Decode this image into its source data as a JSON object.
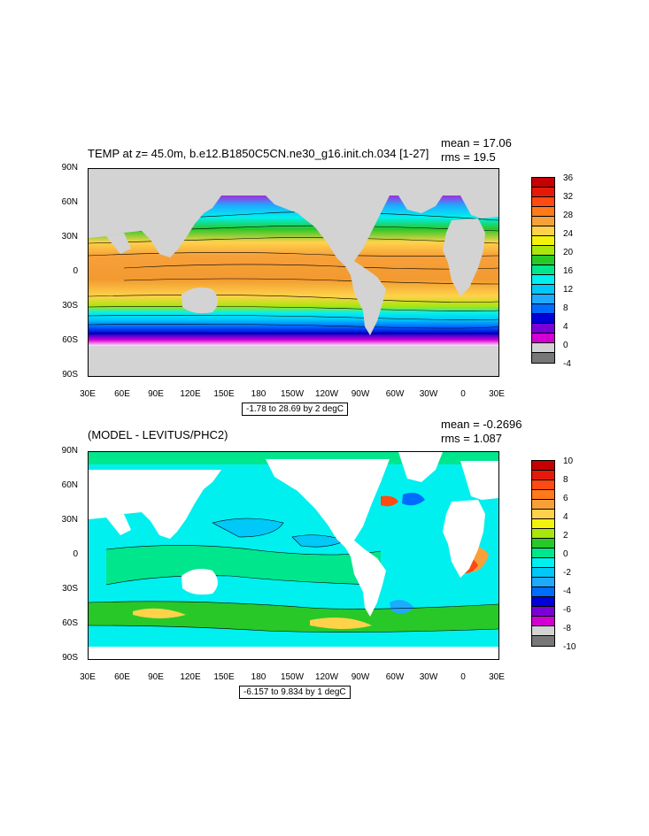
{
  "panels": [
    {
      "title": "TEMP at z=  45.0m, b.e12.B1850C5CN.ne30_g16.init.ch.034 [1-27]",
      "mean": "mean = 17.06",
      "rms": "rms = 19.5",
      "range_text": "-1.78 to 28.69 by 2 degC",
      "lat_labels": [
        "90N",
        "60N",
        "30N",
        "0",
        "30S",
        "60S",
        "90S"
      ],
      "lon_labels": [
        "30E",
        "60E",
        "90E",
        "120E",
        "150E",
        "180",
        "150W",
        "120W",
        "90W",
        "60W",
        "30W",
        "0",
        "30E"
      ],
      "colorbar_labels": [
        "36",
        "32",
        "28",
        "24",
        "20",
        "16",
        "12",
        "8",
        "4",
        "0",
        "-4"
      ],
      "colorbar_colors": [
        "#c40000",
        "#e31a0a",
        "#ff4a12",
        "#ff7a1a",
        "#f7a03a",
        "#ffd24a",
        "#f2f20c",
        "#a8e60c",
        "#28c828",
        "#00e68c",
        "#00f0f0",
        "#00c8f8",
        "#1eaaff",
        "#006cff",
        "#0000d8",
        "#7a00d8",
        "#d200d2",
        "#d3d3d3",
        "#777777"
      ],
      "land_color": "#d3d3d3"
    },
    {
      "title": "(MODEL - LEVITUS/PHC2)",
      "mean": "mean = -0.2696",
      "rms": "rms = 1.087",
      "range_text": "-6.157 to 9.834 by 1 degC",
      "lat_labels": [
        "90N",
        "60N",
        "30N",
        "0",
        "30S",
        "60S",
        "90S"
      ],
      "lon_labels": [
        "30E",
        "60E",
        "90E",
        "120E",
        "150E",
        "180",
        "150W",
        "120W",
        "90W",
        "60W",
        "30W",
        "0",
        "30E"
      ],
      "colorbar_labels": [
        "10",
        "8",
        "6",
        "4",
        "2",
        "0",
        "-2",
        "-4",
        "-6",
        "-8",
        "-10"
      ],
      "colorbar_colors": [
        "#c40000",
        "#e31a0a",
        "#ff4a12",
        "#ff7a1a",
        "#f7a03a",
        "#ffd24a",
        "#f2f20c",
        "#a8e60c",
        "#28c828",
        "#00e68c",
        "#00f0f0",
        "#00c8f8",
        "#1eaaff",
        "#006cff",
        "#0000d8",
        "#7a00d8",
        "#d200d2",
        "#d3d3d3",
        "#777777"
      ],
      "land_color": "#ffffff"
    }
  ]
}
